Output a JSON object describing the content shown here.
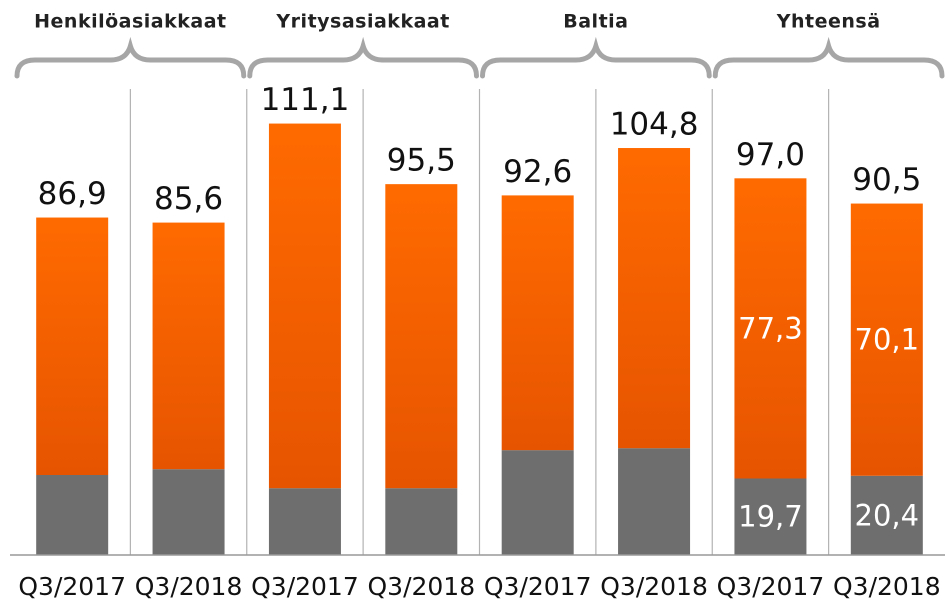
{
  "chart_data": {
    "type": "stacked-bar",
    "groups": [
      "Henkilöasiakkaat",
      "Yritysasiakkaat",
      "Baltia",
      "Yhteensä"
    ],
    "categories": [
      "Q3/2017",
      "Q3/2018",
      "Q3/2017",
      "Q3/2018",
      "Q3/2017",
      "Q3/2018",
      "Q3/2017",
      "Q3/2018"
    ],
    "series": [
      {
        "color": "#6e6e6e",
        "values": [
          20.6,
          22.1,
          17.2,
          17.2,
          27.0,
          27.5,
          19.7,
          20.4
        ],
        "value_labels": [
          null,
          null,
          null,
          null,
          null,
          null,
          "19,7",
          "20,4"
        ]
      },
      {
        "color": "#ff6600",
        "values": [
          66.3,
          63.5,
          93.9,
          78.3,
          65.6,
          77.3,
          77.3,
          70.1
        ],
        "value_labels": [
          null,
          null,
          null,
          null,
          null,
          null,
          "77,3",
          "70,1"
        ]
      }
    ],
    "totals": [
      86.9,
      85.6,
      111.1,
      95.5,
      92.6,
      104.8,
      97.0,
      90.5
    ],
    "total_labels": [
      "86,9",
      "85,6",
      "111,1",
      "95,5",
      "92,6",
      "104,8",
      "97,0",
      "90,5"
    ],
    "ylim": [
      0,
      120
    ]
  }
}
